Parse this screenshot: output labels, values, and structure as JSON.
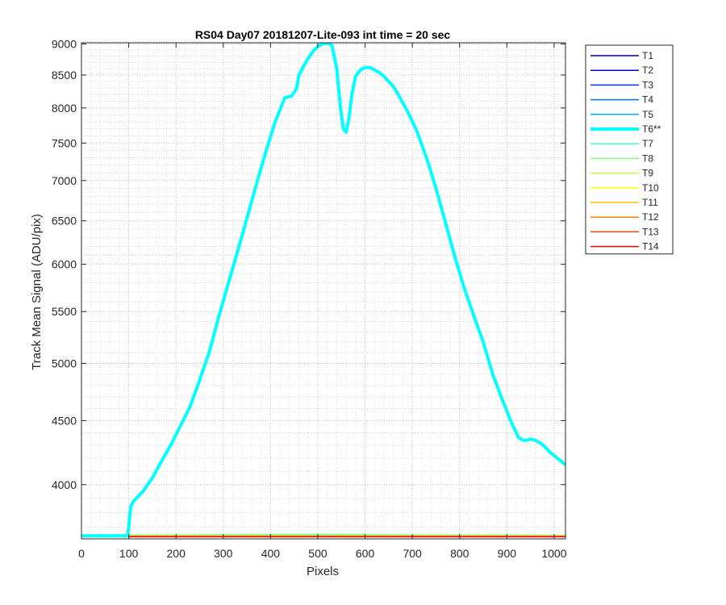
{
  "chart_data": {
    "type": "line",
    "title": "RS04 Day07 20181207-Lite-093 int time = 20 sec",
    "xlabel": "Pixels",
    "ylabel": "Track Mean Signal (ADU/pix)",
    "xlim": [
      0,
      1024
    ],
    "ylim": [
      3620,
      9020
    ],
    "y_scale": "log",
    "grid": "on (major and minor, dotted)",
    "legend_position": "outside right",
    "x_ticks": [
      0,
      100,
      200,
      300,
      400,
      500,
      600,
      700,
      800,
      900,
      1000
    ],
    "y_ticks": [
      4000,
      4500,
      5000,
      5500,
      6000,
      6500,
      7000,
      7500,
      8000,
      8500,
      9000
    ],
    "series": [
      {
        "name": "T1",
        "color": "#00008f",
        "bold": false,
        "x": [
          0,
          1024
        ],
        "y": [
          3640,
          3640
        ]
      },
      {
        "name": "T2",
        "color": "#0000df",
        "bold": false,
        "x": [
          0,
          1024
        ],
        "y": [
          3640,
          3640
        ]
      },
      {
        "name": "T3",
        "color": "#0030ff",
        "bold": false,
        "x": [
          0,
          1024
        ],
        "y": [
          3640,
          3640
        ]
      },
      {
        "name": "T4",
        "color": "#0070ff",
        "bold": false,
        "x": [
          0,
          1024
        ],
        "y": [
          3640,
          3640
        ]
      },
      {
        "name": "T5",
        "color": "#00b0ff",
        "bold": false,
        "x": [
          0,
          1024
        ],
        "y": [
          3640,
          3640
        ]
      },
      {
        "name": "T6**",
        "color": "#00ffff",
        "bold": true,
        "x": [
          0,
          98,
          100,
          104,
          110,
          130,
          150,
          170,
          190,
          210,
          230,
          250,
          270,
          290,
          310,
          330,
          350,
          370,
          390,
          410,
          430,
          445,
          455,
          460,
          470,
          480,
          490,
          500,
          510,
          520,
          530,
          540,
          548,
          554,
          560,
          566,
          572,
          580,
          590,
          600,
          610,
          620,
          630,
          640,
          650,
          660,
          670,
          690,
          710,
          730,
          750,
          770,
          790,
          810,
          830,
          850,
          870,
          890,
          910,
          925,
          935,
          942,
          950,
          960,
          970,
          980,
          990,
          1000,
          1010,
          1020,
          1024
        ],
        "y": [
          3640,
          3640,
          3700,
          3840,
          3880,
          3950,
          4050,
          4180,
          4310,
          4460,
          4620,
          4850,
          5100,
          5440,
          5780,
          6140,
          6530,
          6950,
          7380,
          7800,
          8150,
          8180,
          8290,
          8500,
          8640,
          8770,
          8880,
          8960,
          9000,
          9010,
          8980,
          8600,
          8000,
          7700,
          7650,
          7850,
          8200,
          8480,
          8580,
          8620,
          8620,
          8580,
          8540,
          8480,
          8400,
          8320,
          8200,
          7950,
          7660,
          7300,
          6900,
          6480,
          6080,
          5740,
          5460,
          5200,
          4900,
          4680,
          4480,
          4360,
          4340,
          4340,
          4350,
          4340,
          4320,
          4290,
          4250,
          4220,
          4190,
          4160,
          4150
        ]
      },
      {
        "name": "T7",
        "color": "#40ffbf",
        "bold": false,
        "x": [
          0,
          200,
          400,
          600,
          800,
          1024
        ],
        "y": [
          3643,
          3645,
          3647,
          3646,
          3644,
          3643
        ]
      },
      {
        "name": "T8",
        "color": "#80ff80",
        "bold": false,
        "x": [
          0,
          200,
          400,
          500,
          600,
          800,
          1024
        ],
        "y": [
          3643,
          3646,
          3649,
          3650,
          3648,
          3645,
          3643
        ]
      },
      {
        "name": "T9",
        "color": "#bfff40",
        "bold": false,
        "x": [
          0,
          1024
        ],
        "y": [
          3640,
          3640
        ]
      },
      {
        "name": "T10",
        "color": "#ffff00",
        "bold": false,
        "x": [
          0,
          1024
        ],
        "y": [
          3638,
          3638
        ]
      },
      {
        "name": "T11",
        "color": "#ffbf00",
        "bold": false,
        "x": [
          0,
          1024
        ],
        "y": [
          3637,
          3637
        ]
      },
      {
        "name": "T12",
        "color": "#ff8000",
        "bold": false,
        "x": [
          0,
          1024
        ],
        "y": [
          3636,
          3636
        ]
      },
      {
        "name": "T13",
        "color": "#ff4000",
        "bold": false,
        "x": [
          0,
          1024
        ],
        "y": [
          3635,
          3635
        ]
      },
      {
        "name": "T14",
        "color": "#ff0000",
        "bold": false,
        "x": [
          0,
          1024
        ],
        "y": [
          3634,
          3634
        ]
      }
    ]
  }
}
